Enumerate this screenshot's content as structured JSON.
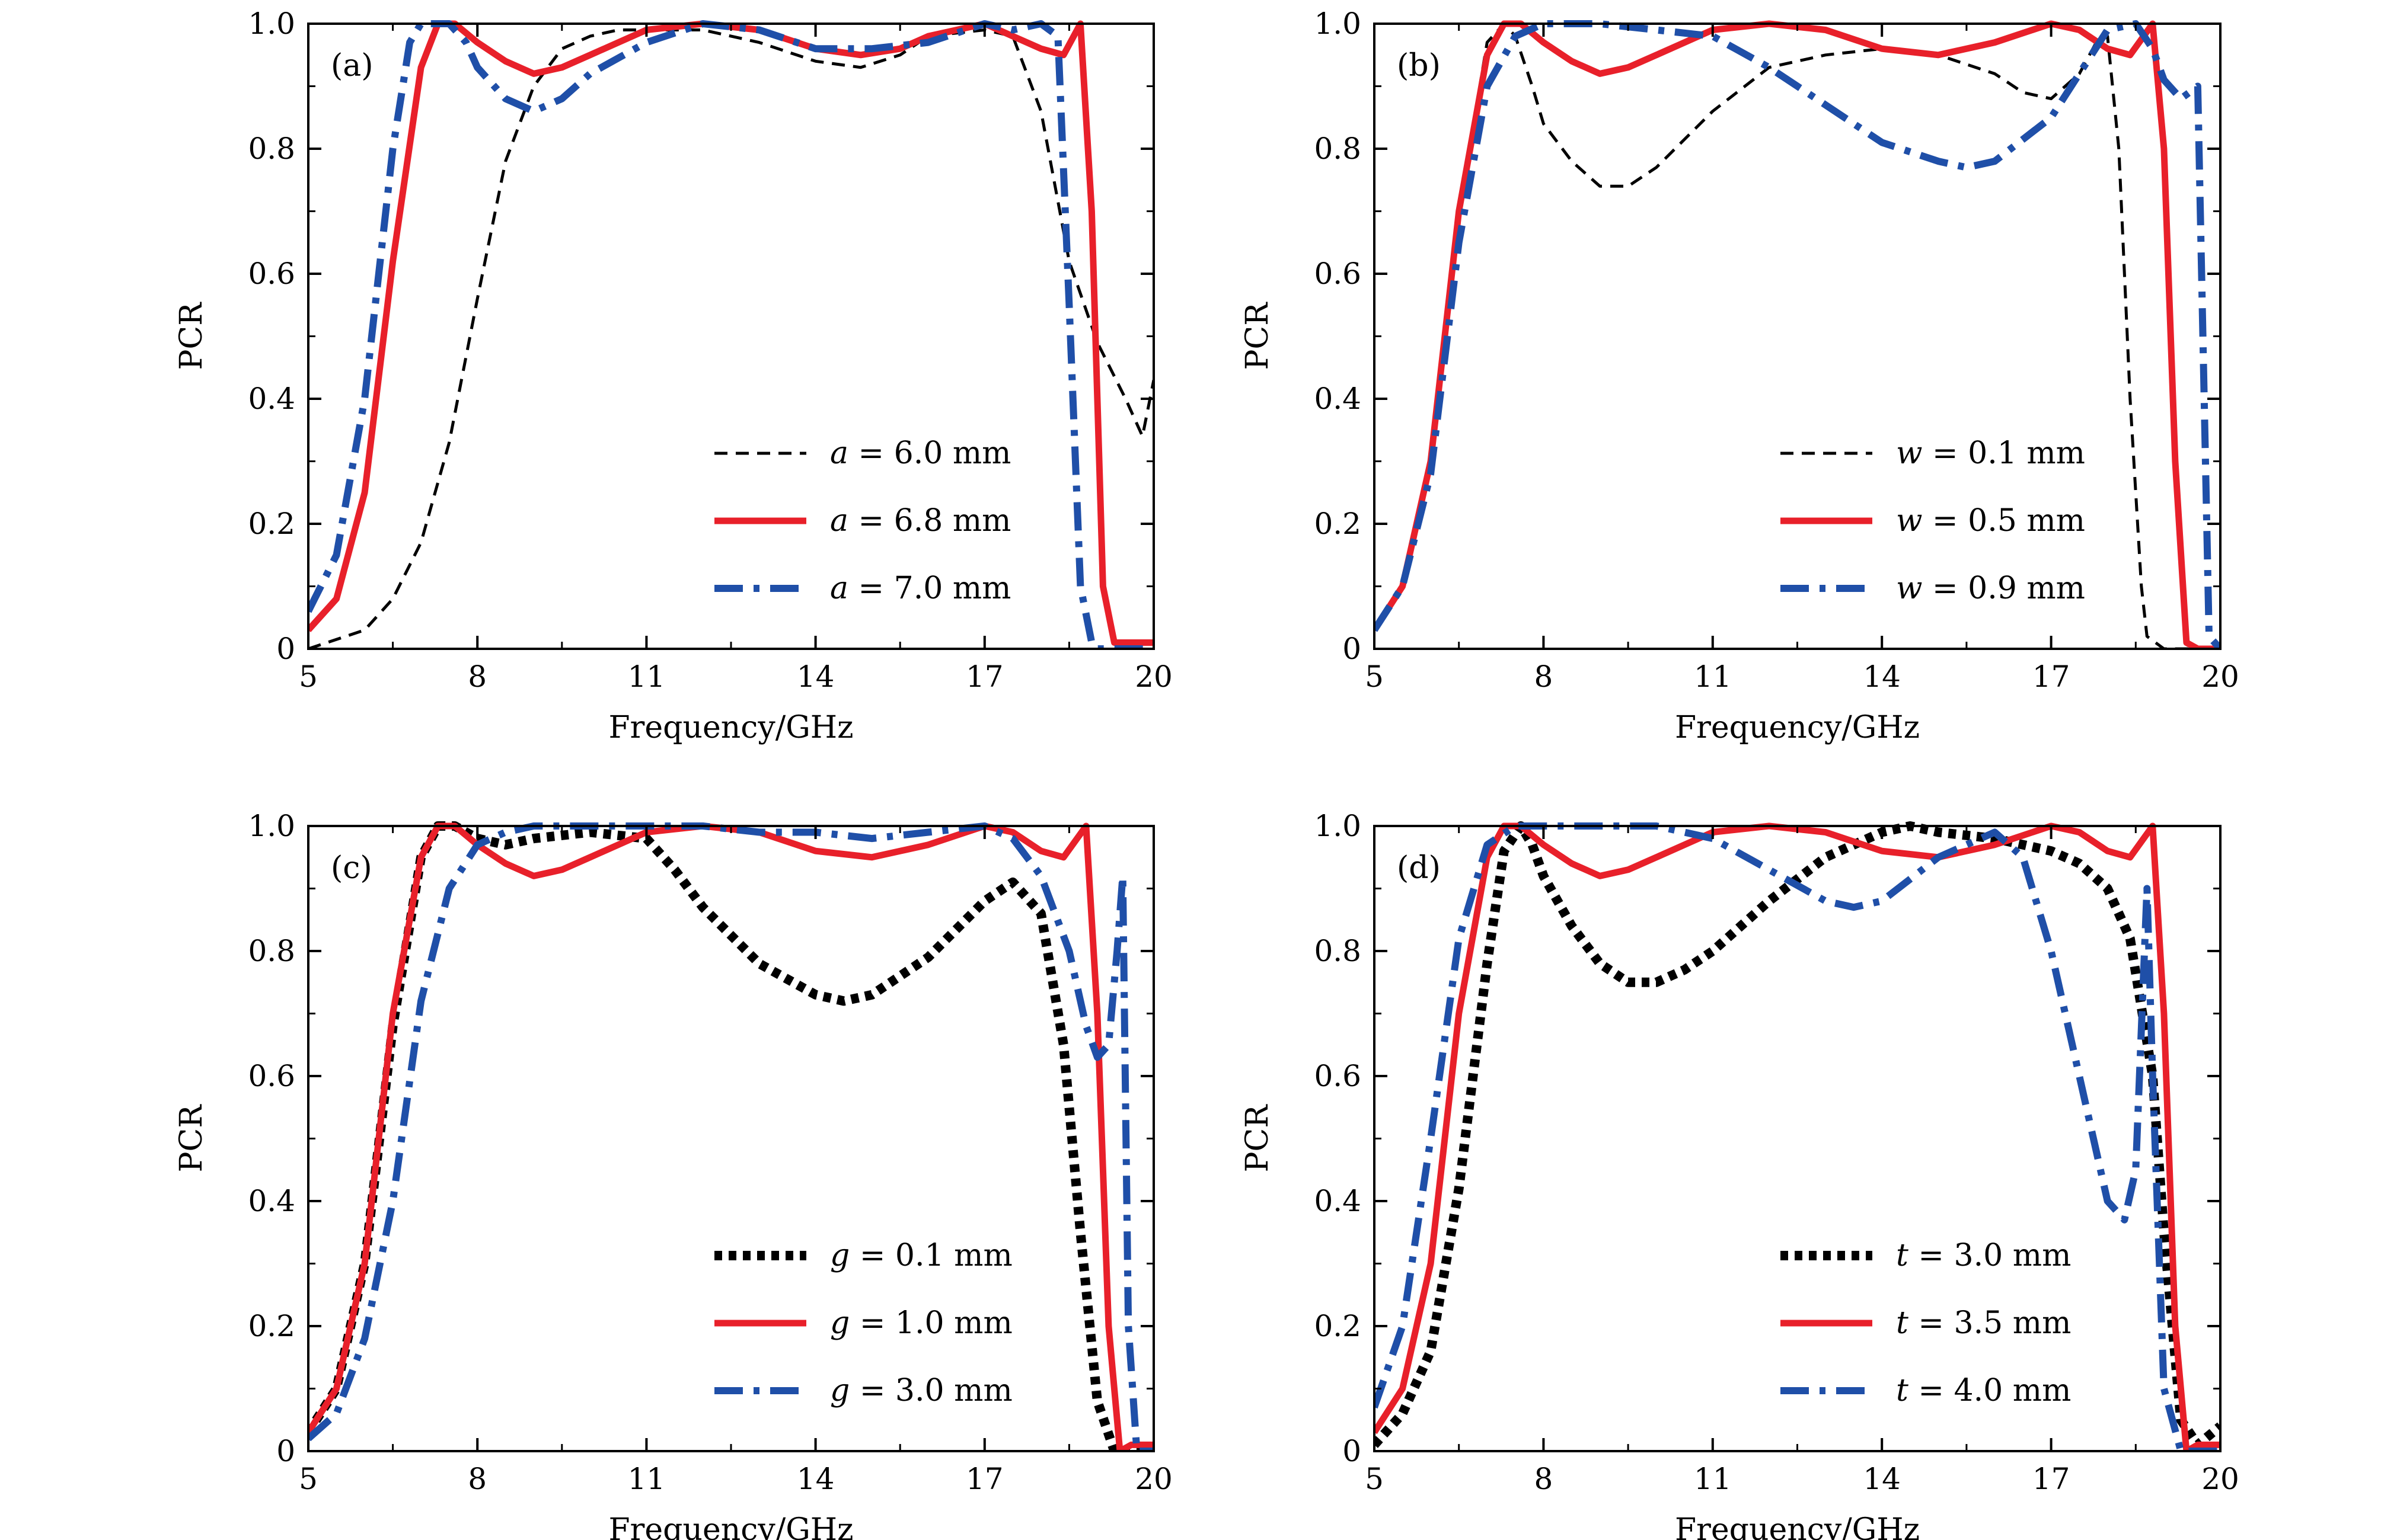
{
  "chart_data": [
    {
      "type": "line",
      "panel_label": "(a)",
      "xlabel": "Frequency/GHz",
      "ylabel": "PCR",
      "xlim": [
        5,
        20
      ],
      "ylim": [
        0,
        1.0
      ],
      "xticks": [
        "5",
        "8",
        "11",
        "14",
        "17",
        "20"
      ],
      "yticks": [
        "0",
        "0.2",
        "0.4",
        "0.6",
        "0.8",
        "1.0"
      ],
      "legend_position": "bottom-right",
      "series": [
        {
          "var": "a",
          "value": "6.0 mm",
          "color": "#000000",
          "style": "dashed",
          "x": [
            5.0,
            6.0,
            6.5,
            7.0,
            7.5,
            8.0,
            8.5,
            9.0,
            9.5,
            10.0,
            10.5,
            11.0,
            12.0,
            13.0,
            14.0,
            14.8,
            15.5,
            16.0,
            17.0,
            17.5,
            18.0,
            18.5,
            19.0,
            19.5,
            19.8,
            20.0
          ],
          "y": [
            0.0,
            0.03,
            0.08,
            0.17,
            0.33,
            0.56,
            0.78,
            0.9,
            0.96,
            0.98,
            0.99,
            0.99,
            0.99,
            0.97,
            0.94,
            0.93,
            0.95,
            0.98,
            0.99,
            0.98,
            0.86,
            0.62,
            0.49,
            0.4,
            0.34,
            0.43
          ]
        },
        {
          "var": "a",
          "value": "6.8 mm",
          "color": "#e8202a",
          "style": "solid",
          "x": [
            5.0,
            5.5,
            6.0,
            6.5,
            7.0,
            7.3,
            7.6,
            8.0,
            8.5,
            9.0,
            9.5,
            10.0,
            11.0,
            12.0,
            13.0,
            14.0,
            14.8,
            15.5,
            16.0,
            17.0,
            17.5,
            18.0,
            18.4,
            18.7,
            18.9,
            19.1,
            19.3,
            19.5,
            20.0
          ],
          "y": [
            0.03,
            0.08,
            0.25,
            0.62,
            0.93,
            1.0,
            1.0,
            0.97,
            0.94,
            0.92,
            0.93,
            0.95,
            0.99,
            1.0,
            0.99,
            0.96,
            0.95,
            0.96,
            0.98,
            1.0,
            0.98,
            0.96,
            0.95,
            1.0,
            0.7,
            0.1,
            0.01,
            0.01,
            0.01
          ]
        },
        {
          "var": "a",
          "value": "7.0 mm",
          "color": "#1f4fa8",
          "style": "dashdot",
          "x": [
            5.0,
            5.5,
            6.0,
            6.5,
            6.8,
            7.0,
            7.5,
            7.8,
            8.0,
            8.5,
            9.0,
            9.5,
            10.0,
            11.0,
            12.0,
            13.0,
            14.0,
            15.0,
            16.0,
            17.0,
            17.5,
            18.0,
            18.3,
            18.5,
            18.7,
            18.9,
            19.0,
            19.5,
            20.0
          ],
          "y": [
            0.06,
            0.15,
            0.4,
            0.8,
            0.97,
            1.0,
            1.0,
            0.97,
            0.93,
            0.88,
            0.86,
            0.88,
            0.92,
            0.97,
            1.0,
            0.99,
            0.96,
            0.96,
            0.97,
            1.0,
            0.99,
            1.0,
            0.98,
            0.55,
            0.1,
            0.01,
            0.0,
            0.0,
            0.0
          ]
        }
      ]
    },
    {
      "type": "line",
      "panel_label": "(b)",
      "xlabel": "Frequency/GHz",
      "ylabel": "PCR",
      "xlim": [
        5,
        20
      ],
      "ylim": [
        0,
        1.0
      ],
      "xticks": [
        "5",
        "8",
        "11",
        "14",
        "17",
        "20"
      ],
      "yticks": [
        "0",
        "0.2",
        "0.4",
        "0.6",
        "0.8",
        "1.0"
      ],
      "legend_position": "bottom-right",
      "series": [
        {
          "var": "w",
          "value": "0.1 mm",
          "color": "#000000",
          "style": "dashed",
          "x": [
            5.0,
            5.5,
            6.0,
            6.5,
            7.0,
            7.3,
            7.5,
            7.8,
            8.0,
            8.5,
            9.0,
            9.5,
            10.0,
            11.0,
            12.0,
            13.0,
            14.0,
            15.0,
            16.0,
            16.5,
            17.0,
            17.5,
            17.8,
            18.0,
            18.2,
            18.4,
            18.6,
            18.7,
            19.0,
            20.0
          ],
          "y": [
            0.03,
            0.1,
            0.3,
            0.7,
            0.97,
            1.0,
            0.98,
            0.9,
            0.84,
            0.78,
            0.74,
            0.74,
            0.77,
            0.86,
            0.93,
            0.95,
            0.96,
            0.95,
            0.92,
            0.89,
            0.88,
            0.92,
            0.97,
            0.98,
            0.8,
            0.4,
            0.1,
            0.02,
            0.0,
            0.0
          ]
        },
        {
          "var": "w",
          "value": "0.5 mm",
          "color": "#e8202a",
          "style": "solid",
          "x": [
            5.0,
            5.5,
            6.0,
            6.5,
            7.0,
            7.3,
            7.6,
            8.0,
            8.5,
            9.0,
            9.5,
            10.0,
            11.0,
            12.0,
            13.0,
            14.0,
            15.0,
            16.0,
            17.0,
            17.5,
            18.0,
            18.4,
            18.8,
            19.0,
            19.2,
            19.4,
            19.6,
            20.0
          ],
          "y": [
            0.03,
            0.1,
            0.3,
            0.7,
            0.95,
            1.0,
            1.0,
            0.97,
            0.94,
            0.92,
            0.93,
            0.95,
            0.99,
            1.0,
            0.99,
            0.96,
            0.95,
            0.97,
            1.0,
            0.99,
            0.96,
            0.95,
            1.0,
            0.8,
            0.3,
            0.01,
            0.0,
            0.0
          ]
        },
        {
          "var": "w",
          "value": "0.9 mm",
          "color": "#1f4fa8",
          "style": "dashdot",
          "x": [
            5.0,
            5.5,
            6.0,
            6.5,
            7.0,
            7.5,
            8.0,
            8.5,
            9.0,
            10.0,
            11.0,
            12.0,
            13.0,
            14.0,
            15.0,
            15.5,
            16.0,
            17.0,
            17.5,
            18.0,
            18.5,
            18.8,
            19.0,
            19.3,
            19.6,
            19.8,
            20.0
          ],
          "y": [
            0.03,
            0.1,
            0.28,
            0.65,
            0.9,
            0.98,
            1.0,
            1.0,
            1.0,
            0.99,
            0.98,
            0.93,
            0.87,
            0.81,
            0.78,
            0.77,
            0.78,
            0.85,
            0.92,
            0.99,
            1.0,
            0.96,
            0.91,
            0.88,
            0.9,
            0.02,
            0.0
          ]
        }
      ]
    },
    {
      "type": "line",
      "panel_label": "(c)",
      "xlabel": "Frequency/GHz",
      "ylabel": "PCR",
      "xlim": [
        5,
        20
      ],
      "ylim": [
        0,
        1.0
      ],
      "xticks": [
        "5",
        "8",
        "11",
        "14",
        "17",
        "20"
      ],
      "yticks": [
        "0",
        "0.2",
        "0.4",
        "0.6",
        "0.8",
        "1.0"
      ],
      "legend_position": "bottom-right",
      "series": [
        {
          "var": "g",
          "value": "0.1 mm",
          "color": "#000000",
          "style": "dotted",
          "x": [
            5.0,
            5.5,
            6.0,
            6.5,
            7.0,
            7.3,
            7.6,
            8.0,
            8.5,
            9.0,
            10.0,
            11.0,
            11.5,
            12.0,
            13.0,
            14.0,
            14.5,
            15.0,
            16.0,
            17.0,
            17.5,
            18.0,
            18.4,
            18.7,
            19.0,
            19.3,
            19.6,
            20.0
          ],
          "y": [
            0.03,
            0.1,
            0.3,
            0.68,
            0.95,
            1.0,
            1.0,
            0.98,
            0.97,
            0.98,
            0.99,
            0.98,
            0.93,
            0.87,
            0.78,
            0.73,
            0.72,
            0.73,
            0.79,
            0.88,
            0.91,
            0.86,
            0.65,
            0.35,
            0.08,
            0.0,
            0.0,
            0.0
          ]
        },
        {
          "var": "g",
          "value": "1.0 mm",
          "color": "#e8202a",
          "style": "solid",
          "x": [
            5.0,
            5.5,
            6.0,
            6.5,
            7.0,
            7.3,
            7.6,
            8.0,
            8.5,
            9.0,
            9.5,
            10.0,
            11.0,
            12.0,
            13.0,
            14.0,
            15.0,
            16.0,
            17.0,
            17.5,
            18.0,
            18.4,
            18.8,
            19.0,
            19.2,
            19.4,
            19.6,
            20.0
          ],
          "y": [
            0.03,
            0.1,
            0.3,
            0.7,
            0.95,
            1.0,
            1.0,
            0.97,
            0.94,
            0.92,
            0.93,
            0.95,
            0.99,
            1.0,
            0.99,
            0.96,
            0.95,
            0.97,
            1.0,
            0.99,
            0.96,
            0.95,
            1.0,
            0.7,
            0.2,
            0.0,
            0.01,
            0.01
          ]
        },
        {
          "var": "g",
          "value": "3.0 mm",
          "color": "#1f4fa8",
          "style": "dashdot",
          "x": [
            5.0,
            5.5,
            6.0,
            6.5,
            7.0,
            7.5,
            8.0,
            8.5,
            9.0,
            10.0,
            11.0,
            12.0,
            13.0,
            14.0,
            15.0,
            16.0,
            17.0,
            17.5,
            18.0,
            18.5,
            18.8,
            19.0,
            19.2,
            19.35,
            19.45,
            19.55,
            19.7,
            20.0
          ],
          "y": [
            0.02,
            0.06,
            0.18,
            0.4,
            0.72,
            0.9,
            0.97,
            0.99,
            1.0,
            1.0,
            1.0,
            1.0,
            0.99,
            0.99,
            0.98,
            0.99,
            1.0,
            0.98,
            0.92,
            0.8,
            0.68,
            0.63,
            0.65,
            0.8,
            0.92,
            0.2,
            0.0,
            0.0
          ]
        }
      ]
    },
    {
      "type": "line",
      "panel_label": "(d)",
      "xlabel": "Frequency/GHz",
      "ylabel": "PCR",
      "xlim": [
        5,
        20
      ],
      "ylim": [
        0,
        1.0
      ],
      "xticks": [
        "5",
        "8",
        "11",
        "14",
        "17",
        "20"
      ],
      "yticks": [
        "0",
        "0.2",
        "0.4",
        "0.6",
        "0.8",
        "1.0"
      ],
      "legend_position": "bottom-right",
      "series": [
        {
          "var": "t",
          "value": "3.0 mm",
          "color": "#000000",
          "style": "dotted",
          "x": [
            5.0,
            5.5,
            6.0,
            6.5,
            7.0,
            7.3,
            7.6,
            7.8,
            8.0,
            8.5,
            9.0,
            9.5,
            10.0,
            10.5,
            11.0,
            12.0,
            13.0,
            14.0,
            14.5,
            15.0,
            16.0,
            17.0,
            17.5,
            18.0,
            18.4,
            18.8,
            19.0,
            19.3,
            19.6,
            20.0
          ],
          "y": [
            0.01,
            0.06,
            0.16,
            0.42,
            0.78,
            0.96,
            1.0,
            0.97,
            0.92,
            0.84,
            0.78,
            0.75,
            0.75,
            0.77,
            0.8,
            0.88,
            0.95,
            0.99,
            1.0,
            0.99,
            0.98,
            0.96,
            0.94,
            0.9,
            0.82,
            0.6,
            0.35,
            0.05,
            0.01,
            0.04
          ]
        },
        {
          "var": "t",
          "value": "3.5 mm",
          "color": "#e8202a",
          "style": "solid",
          "x": [
            5.0,
            5.5,
            6.0,
            6.5,
            7.0,
            7.3,
            7.6,
            8.0,
            8.5,
            9.0,
            9.5,
            10.0,
            11.0,
            12.0,
            13.0,
            14.0,
            15.0,
            16.0,
            17.0,
            17.5,
            18.0,
            18.4,
            18.8,
            19.0,
            19.2,
            19.4,
            19.6,
            20.0
          ],
          "y": [
            0.03,
            0.1,
            0.3,
            0.7,
            0.95,
            1.0,
            1.0,
            0.97,
            0.94,
            0.92,
            0.93,
            0.95,
            0.99,
            1.0,
            0.99,
            0.96,
            0.95,
            0.97,
            1.0,
            0.99,
            0.96,
            0.95,
            1.0,
            0.7,
            0.2,
            0.0,
            0.01,
            0.01
          ]
        },
        {
          "var": "t",
          "value": "4.0 mm",
          "color": "#1f4fa8",
          "style": "dashdot",
          "x": [
            5.0,
            5.5,
            6.0,
            6.5,
            7.0,
            7.5,
            8.0,
            9.0,
            10.0,
            11.0,
            12.0,
            13.0,
            13.5,
            14.0,
            15.0,
            16.0,
            16.5,
            17.0,
            17.5,
            18.0,
            18.3,
            18.5,
            18.7,
            18.8,
            19.0,
            19.3,
            19.6,
            20.0
          ],
          "y": [
            0.07,
            0.2,
            0.5,
            0.82,
            0.97,
            1.0,
            1.0,
            1.0,
            1.0,
            0.98,
            0.93,
            0.88,
            0.87,
            0.88,
            0.95,
            0.99,
            0.95,
            0.8,
            0.6,
            0.4,
            0.37,
            0.45,
            0.9,
            0.6,
            0.1,
            0.0,
            0.0,
            0.0
          ]
        }
      ]
    }
  ]
}
